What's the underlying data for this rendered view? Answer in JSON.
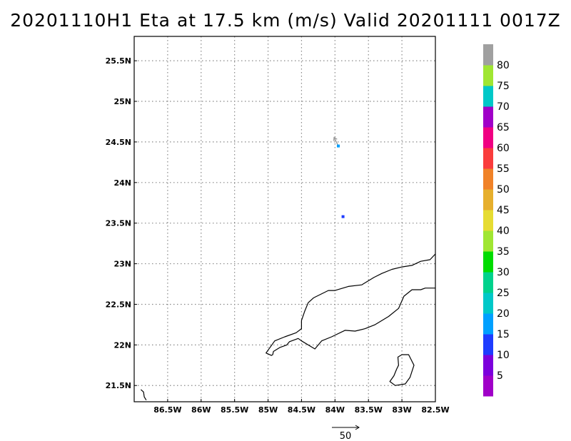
{
  "title": "20201110H1 Eta at 17.5 km (m/s) Valid 20201111 0017Z",
  "chart_data": {
    "type": "map",
    "title": "20201110H1 Eta at 17.5 km (m/s) Valid 20201111 0017Z",
    "lon_range": [
      -87.0,
      -82.5
    ],
    "lat_range": [
      21.3,
      25.8
    ],
    "grid": true,
    "x_ticks": [
      {
        "value": -86.5,
        "label": "86.5W"
      },
      {
        "value": -86.0,
        "label": "86W"
      },
      {
        "value": -85.5,
        "label": "85.5W"
      },
      {
        "value": -85.0,
        "label": "85W"
      },
      {
        "value": -84.5,
        "label": "84.5W"
      },
      {
        "value": -84.0,
        "label": "84W"
      },
      {
        "value": -83.5,
        "label": "83.5W"
      },
      {
        "value": -83.0,
        "label": "83W"
      },
      {
        "value": -82.5,
        "label": "82.5W"
      }
    ],
    "y_ticks": [
      {
        "value": 21.5,
        "label": "21.5N"
      },
      {
        "value": 22.0,
        "label": "22N"
      },
      {
        "value": 22.5,
        "label": "22.5N"
      },
      {
        "value": 23.0,
        "label": "23N"
      },
      {
        "value": 23.5,
        "label": "23.5N"
      },
      {
        "value": 24.0,
        "label": "24N"
      },
      {
        "value": 24.5,
        "label": "24.5N"
      },
      {
        "value": 25.0,
        "label": "25N"
      },
      {
        "value": 25.5,
        "label": "25.5N"
      }
    ],
    "colorbar": {
      "placement": "right",
      "labels": [
        "5",
        "10",
        "15",
        "20",
        "25",
        "30",
        "35",
        "40",
        "45",
        "50",
        "55",
        "60",
        "65",
        "70",
        "75",
        "80"
      ],
      "colors": [
        "#a000c8",
        "#7c00dc",
        "#1e3cff",
        "#00a0ff",
        "#00c8c8",
        "#00d28c",
        "#00dc00",
        "#a0e632",
        "#e6dc32",
        "#e6af2d",
        "#f08228",
        "#fa3c3c",
        "#f00082",
        "#a000c8",
        "#00c8c8",
        "#a0e632",
        "#a0a0a0"
      ]
    },
    "observations": [
      {
        "lon": -83.95,
        "lat": 24.45,
        "color": "#00a0ff",
        "wind_u": -10,
        "wind_v": 20
      },
      {
        "lon": -83.88,
        "lat": 23.58,
        "color": "#1e3cff"
      }
    ],
    "vector_reference": {
      "label": "50",
      "value": 50
    },
    "coastline": [
      [
        [
          -86.9,
          21.45
        ],
        [
          -86.86,
          21.42
        ],
        [
          -86.85,
          21.36
        ],
        [
          -86.82,
          21.32
        ]
      ],
      [
        [
          -82.5,
          23.12
        ],
        [
          -82.58,
          23.05
        ],
        [
          -82.72,
          23.03
        ],
        [
          -82.85,
          22.98
        ],
        [
          -83.0,
          22.96
        ],
        [
          -83.15,
          22.93
        ],
        [
          -83.3,
          22.88
        ],
        [
          -83.42,
          22.83
        ],
        [
          -83.6,
          22.74
        ],
        [
          -83.8,
          22.72
        ],
        [
          -84.0,
          22.67
        ],
        [
          -84.1,
          22.67
        ],
        [
          -84.32,
          22.58
        ],
        [
          -84.4,
          22.52
        ],
        [
          -84.45,
          22.42
        ],
        [
          -84.5,
          22.3
        ],
        [
          -84.5,
          22.2
        ],
        [
          -84.58,
          22.15
        ],
        [
          -84.75,
          22.1
        ],
        [
          -84.9,
          22.05
        ],
        [
          -85.03,
          21.9
        ],
        [
          -84.95,
          21.87
        ],
        [
          -84.93,
          21.88
        ],
        [
          -84.92,
          21.92
        ],
        [
          -84.82,
          21.97
        ],
        [
          -84.72,
          22.0
        ],
        [
          -84.68,
          22.04
        ],
        [
          -84.55,
          22.08
        ],
        [
          -84.5,
          22.05
        ],
        [
          -84.3,
          21.95
        ],
        [
          -84.2,
          22.05
        ],
        [
          -84.05,
          22.1
        ],
        [
          -83.85,
          22.18
        ],
        [
          -83.7,
          22.17
        ],
        [
          -83.55,
          22.2
        ],
        [
          -83.4,
          22.25
        ],
        [
          -83.2,
          22.35
        ],
        [
          -83.05,
          22.45
        ],
        [
          -82.97,
          22.6
        ],
        [
          -82.85,
          22.68
        ],
        [
          -82.72,
          22.68
        ],
        [
          -82.65,
          22.7
        ],
        [
          -82.5,
          22.7
        ]
      ],
      [
        [
          -83.0,
          21.88
        ],
        [
          -82.9,
          21.88
        ],
        [
          -82.82,
          21.75
        ],
        [
          -82.88,
          21.6
        ],
        [
          -82.95,
          21.52
        ],
        [
          -83.1,
          21.5
        ],
        [
          -83.18,
          21.55
        ],
        [
          -83.12,
          21.62
        ],
        [
          -83.08,
          21.7
        ],
        [
          -83.05,
          21.75
        ],
        [
          -83.06,
          21.85
        ],
        [
          -83.0,
          21.88
        ]
      ]
    ]
  }
}
